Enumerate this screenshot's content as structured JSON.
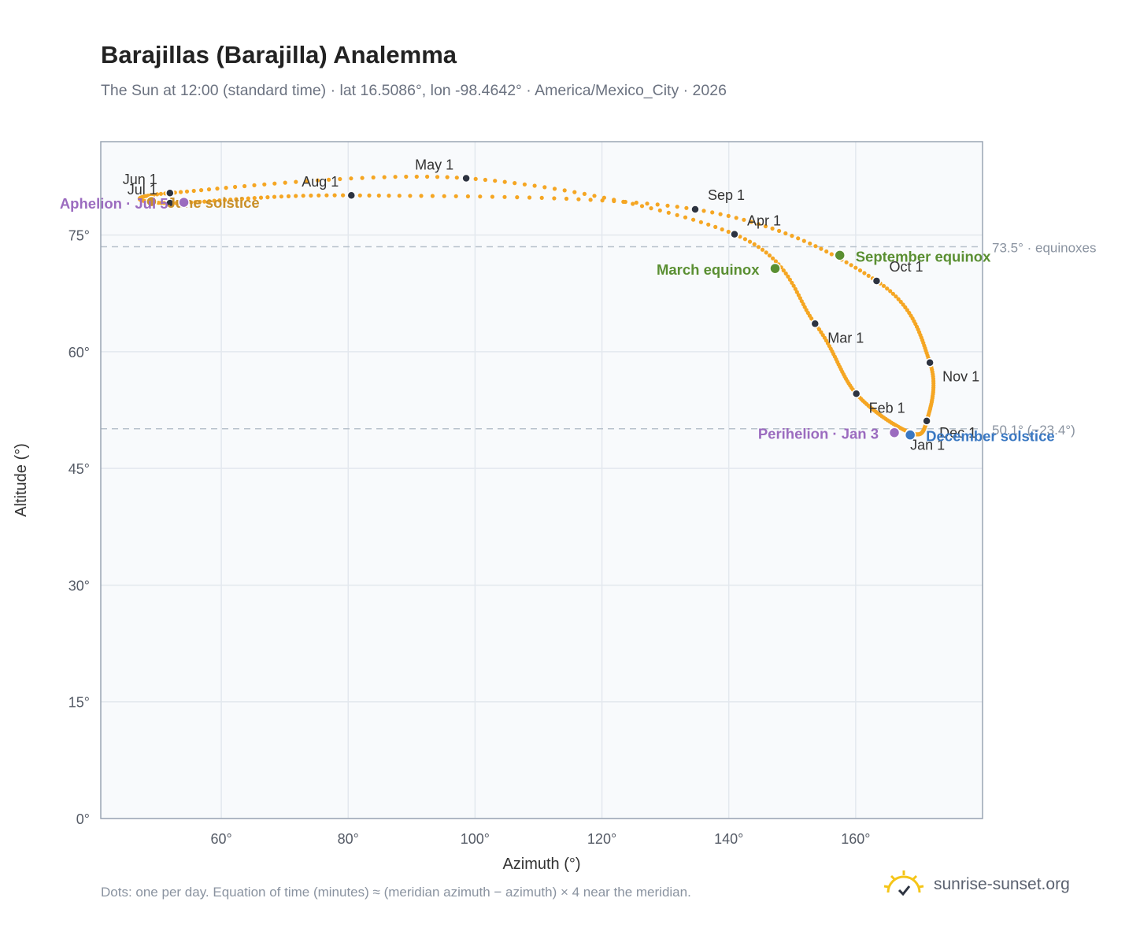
{
  "header": {
    "title": "Barajillas (Barajilla) Analemma",
    "subtitle": "The Sun at 12:00 (standard time) · lat 16.5086°, lon -98.4642° · America/Mexico_City · 2026"
  },
  "footer": {
    "note": "Dots: one per day. Equation of time (minutes) ≈ (meridian azimuth − azimuth) × 4 near the meridian.",
    "brand": "sunrise-sunset.org"
  },
  "colors": {
    "curve": "#f5a623",
    "month_marker": "#2d3340",
    "equinox": "#5a8f32",
    "december_solstice": "#3a78c2",
    "june_solstice": "#c9902a",
    "apsis": "#9b6bbf",
    "reference_line": "#b8c2cc",
    "plot_background": "#f8fafc"
  },
  "chart_data": {
    "type": "scatter",
    "title": "Barajillas (Barajilla) Analemma",
    "xlabel": "Azimuth (°)",
    "ylabel": "Altitude (°)",
    "xlim": [
      41,
      180
    ],
    "ylim": [
      0,
      87
    ],
    "x_ticks": [
      60,
      80,
      100,
      120,
      140,
      160
    ],
    "x_tick_labels": [
      "60°",
      "80°",
      "100°",
      "120°",
      "140°",
      "160°"
    ],
    "y_ticks": [
      0,
      15,
      30,
      45,
      60,
      75
    ],
    "y_tick_labels": [
      "0°",
      "15°",
      "30°",
      "45°",
      "60°",
      "75°"
    ],
    "grid": true,
    "curve_note": "one dot per day",
    "month_markers": [
      {
        "label": "Jan 1",
        "az": 168.6,
        "alt": 49.6
      },
      {
        "label": "Feb 1",
        "az": 160.1,
        "alt": 54.6
      },
      {
        "label": "Mar 1",
        "az": 153.6,
        "alt": 63.6
      },
      {
        "label": "Apr 1",
        "az": 140.9,
        "alt": 75.1
      },
      {
        "label": "May 1",
        "az": 98.6,
        "alt": 82.3
      },
      {
        "label": "Jun 1",
        "az": 51.9,
        "alt": 80.4
      },
      {
        "label": "Jul 1",
        "az": 51.9,
        "alt": 79.1
      },
      {
        "label": "Aug 1",
        "az": 80.5,
        "alt": 80.1
      },
      {
        "label": "Sep 1",
        "az": 134.7,
        "alt": 78.3
      },
      {
        "label": "Oct 1",
        "az": 163.3,
        "alt": 69.1
      },
      {
        "label": "Nov 1",
        "az": 171.7,
        "alt": 58.6
      },
      {
        "label": "Dec 1",
        "az": 171.2,
        "alt": 51.1
      }
    ],
    "events": [
      {
        "label": "March equinox",
        "az": 147.3,
        "alt": 70.7,
        "color": "#5a8f32"
      },
      {
        "label": "September equinox",
        "az": 157.5,
        "alt": 72.4,
        "color": "#5a8f32"
      },
      {
        "label": "December solstice",
        "az": 168.6,
        "alt": 49.3,
        "color": "#3a78c2"
      },
      {
        "label": "June solstice",
        "az": 49.0,
        "alt": 79.3,
        "color": "#c9902a"
      },
      {
        "label": "Perihelion · Jan 3",
        "az": 166.1,
        "alt": 49.6,
        "color": "#9b6bbf"
      },
      {
        "label": "Aphelion · Jul 5",
        "az": 54.1,
        "alt": 79.2,
        "color": "#9b6bbf"
      }
    ],
    "reference_lines": [
      {
        "alt": 73.5,
        "label": "73.5° · equinoxes"
      },
      {
        "alt": 50.1,
        "label": "50.1° (−23.4°)"
      }
    ]
  }
}
